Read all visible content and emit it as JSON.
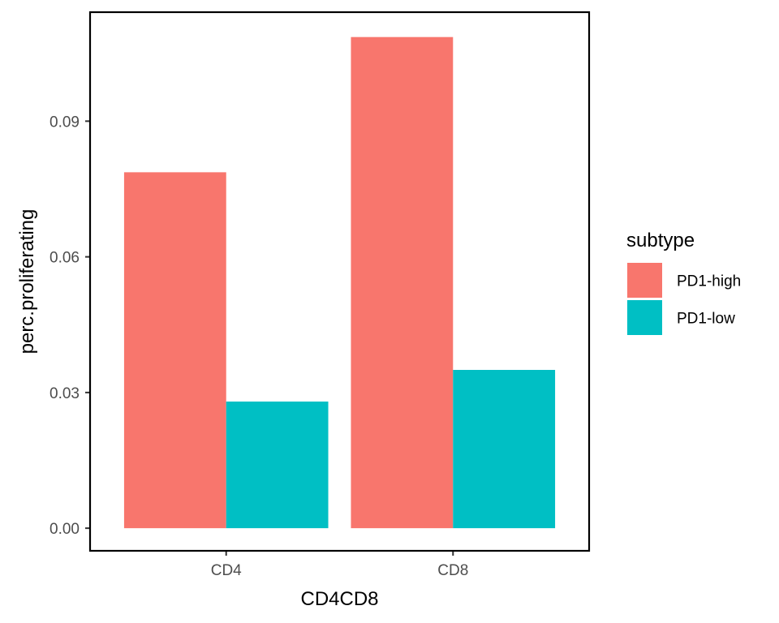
{
  "chart_data": {
    "type": "bar",
    "xlabel": "CD4CD8",
    "ylabel": "perc.proliferating",
    "categories": [
      "CD4",
      "CD8"
    ],
    "series": [
      {
        "name": "PD1-high",
        "color": "#F8766D",
        "values": [
          0.0787,
          0.1086
        ]
      },
      {
        "name": "PD1-low",
        "color": "#00BFC4",
        "values": [
          0.028,
          0.035
        ]
      }
    ],
    "ylim": [
      -0.005,
      0.1141
    ],
    "yticks": [
      0.0,
      0.03,
      0.06,
      0.09
    ],
    "ytick_labels": [
      "0.00",
      "0.03",
      "0.06",
      "0.09"
    ],
    "legend": {
      "title": "subtype",
      "position": "right"
    },
    "grid": false
  }
}
